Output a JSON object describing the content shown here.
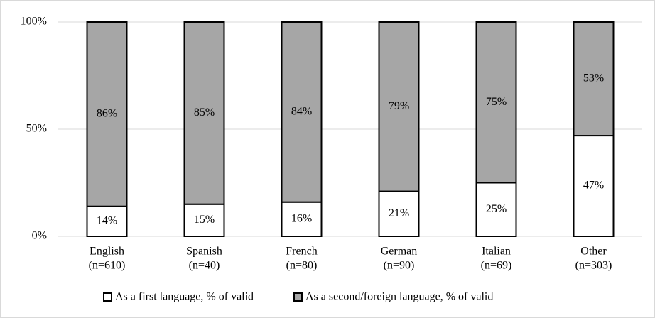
{
  "chart_data": {
    "type": "stacked_bar",
    "categories": [
      [
        "English",
        "(n=610)"
      ],
      [
        "Spanish",
        "(n=40)"
      ],
      [
        "French",
        "(n=80)"
      ],
      [
        "German",
        "(n=90)"
      ],
      [
        "Italian",
        "(n=69)"
      ],
      [
        "Other",
        "(n=303)"
      ]
    ],
    "series": [
      {
        "name": "As a first language, % of valid",
        "color": "#ffffff",
        "values": [
          14,
          15,
          16,
          21,
          25,
          47
        ],
        "value_labels": [
          "14%",
          "15%",
          "16%",
          "21%",
          "25%",
          "47%"
        ]
      },
      {
        "name": "As a second/foreign language, % of valid",
        "color": "#a6a6a6",
        "values": [
          86,
          85,
          84,
          79,
          75,
          53
        ],
        "value_labels": [
          "86%",
          "85%",
          "84%",
          "79%",
          "75%",
          "53%"
        ]
      }
    ],
    "ylim": [
      0,
      100
    ],
    "yticks": [
      {
        "value": 0,
        "label": "0%"
      },
      {
        "value": 50,
        "label": "50%"
      },
      {
        "value": 100,
        "label": "100%"
      }
    ],
    "grid": true,
    "legend": "bottom"
  }
}
